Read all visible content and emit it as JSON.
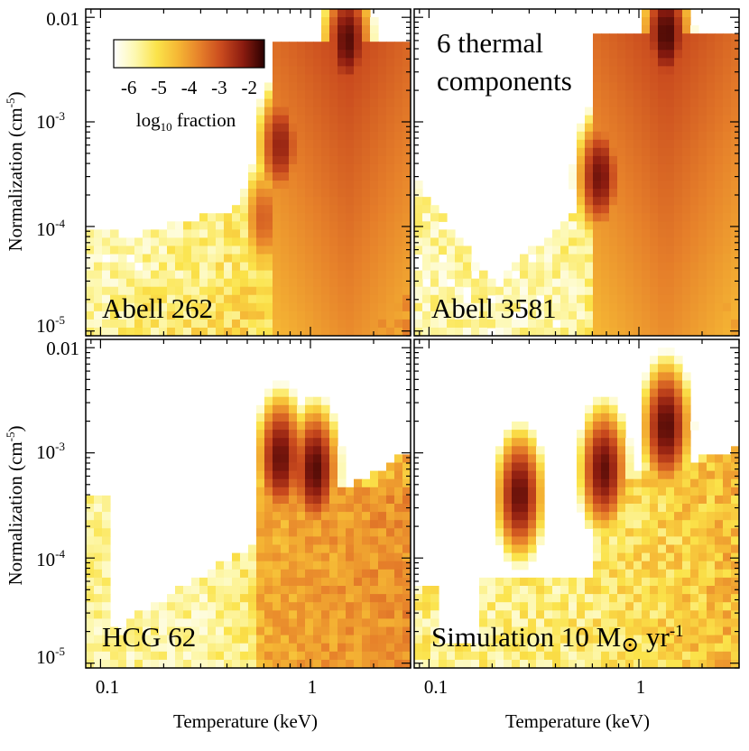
{
  "figure": {
    "xlabel": "Temperature (keV)",
    "ylabel_main": "Normalization (cm",
    "ylabel_sup": "-5",
    "ylabel_close": ")",
    "top_right_label_line1": "6 thermal",
    "top_right_label_line2": "components"
  },
  "colorbar": {
    "ticks": [
      "-6",
      "-5",
      "-4",
      "-3",
      "-2"
    ],
    "tick_values": [
      -6,
      -5,
      -4,
      -3,
      -2
    ],
    "range": [
      -6.5,
      -1.5
    ],
    "title_prefix": "log",
    "title_sub": "10",
    "title_suffix": " fraction",
    "colors": [
      "#ffffff",
      "#fdf8b0",
      "#fbe34a",
      "#f5b634",
      "#e6802a",
      "#c94a1e",
      "#8c1c10",
      "#2a0000"
    ]
  },
  "axes": {
    "x_scale": "log",
    "y_scale": "log",
    "xlim": [
      0.085,
      3.0
    ],
    "ylim": [
      9e-06,
      0.012
    ],
    "x_tick_labels": [
      "0.1",
      "1"
    ],
    "x_tick_values": [
      0.1,
      1
    ],
    "y_tick_labels": [
      {
        "base": "0.01",
        "sup": "",
        "value": 0.01
      },
      {
        "base": "10",
        "sup": "-3",
        "value": 0.001
      },
      {
        "base": "10",
        "sup": "-4",
        "value": 0.0001
      },
      {
        "base": "10",
        "sup": "-5",
        "value": 1e-05
      }
    ]
  },
  "chart_data": [
    {
      "type": "heatmap",
      "title": "Abell 262",
      "xlabel": "",
      "ylabel": "Normalization (cm-5)",
      "x_scale": "log",
      "y_scale": "log",
      "xlim": [
        0.085,
        3.0
      ],
      "ylim": [
        9e-06,
        0.012
      ],
      "value_label": "log10 fraction",
      "value_range": [
        -6.5,
        -1.5
      ],
      "background": "floor",
      "peaks": [
        {
          "T": 1.5,
          "norm": 0.006,
          "value": -1.8,
          "tail": true
        },
        {
          "T": 0.72,
          "norm": 0.0006,
          "value": -2.3,
          "tail": false
        },
        {
          "T": 0.6,
          "norm": 0.00012,
          "value": -3.2,
          "tail": false
        }
      ]
    },
    {
      "type": "heatmap",
      "title": "Abell 3581",
      "xlabel": "",
      "ylabel": "",
      "x_scale": "log",
      "y_scale": "log",
      "xlim": [
        0.085,
        3.0
      ],
      "ylim": [
        9e-06,
        0.012
      ],
      "value_label": "log10 fraction",
      "value_range": [
        -6.5,
        -1.5
      ],
      "background": "vshape",
      "peaks": [
        {
          "T": 1.35,
          "norm": 0.007,
          "value": -1.7,
          "tail": true
        },
        {
          "T": 0.65,
          "norm": 0.0003,
          "value": -2.0,
          "tail": false
        }
      ]
    },
    {
      "type": "heatmap",
      "title": "HCG 62",
      "xlabel": "Temperature (keV)",
      "ylabel": "Normalization (cm-5)",
      "x_scale": "log",
      "y_scale": "log",
      "xlim": [
        0.085,
        3.0
      ],
      "ylim": [
        9e-06,
        0.012
      ],
      "value_label": "log10 fraction",
      "value_range": [
        -6.5,
        -1.5
      ],
      "background": "diagonal",
      "peaks": [
        {
          "T": 0.72,
          "norm": 0.0009,
          "value": -1.9,
          "tail": false
        },
        {
          "T": 1.05,
          "norm": 0.0007,
          "value": -1.8,
          "tail": false
        }
      ]
    },
    {
      "type": "heatmap",
      "title": "Simulation 10 M⊙ yr-1",
      "xlabel": "Temperature (keV)",
      "ylabel": "",
      "x_scale": "log",
      "y_scale": "log",
      "xlim": [
        0.085,
        3.0
      ],
      "ylim": [
        9e-06,
        0.012
      ],
      "value_label": "log10 fraction",
      "value_range": [
        -6.5,
        -1.5
      ],
      "background": "sim",
      "peaks": [
        {
          "T": 0.27,
          "norm": 0.0004,
          "value": -1.9,
          "tail": false
        },
        {
          "T": 0.68,
          "norm": 0.0007,
          "value": -1.9,
          "tail": false
        },
        {
          "T": 1.35,
          "norm": 0.0018,
          "value": -1.8,
          "tail": false
        }
      ]
    }
  ],
  "panel_labels": {
    "a262": "Abell 262",
    "a3581": "Abell 3581",
    "hcg62": "HCG 62",
    "sim_prefix": "Simulation 10 M",
    "sim_symbol": "⊙",
    "sim_unit": " yr",
    "sim_sup": "-1"
  }
}
